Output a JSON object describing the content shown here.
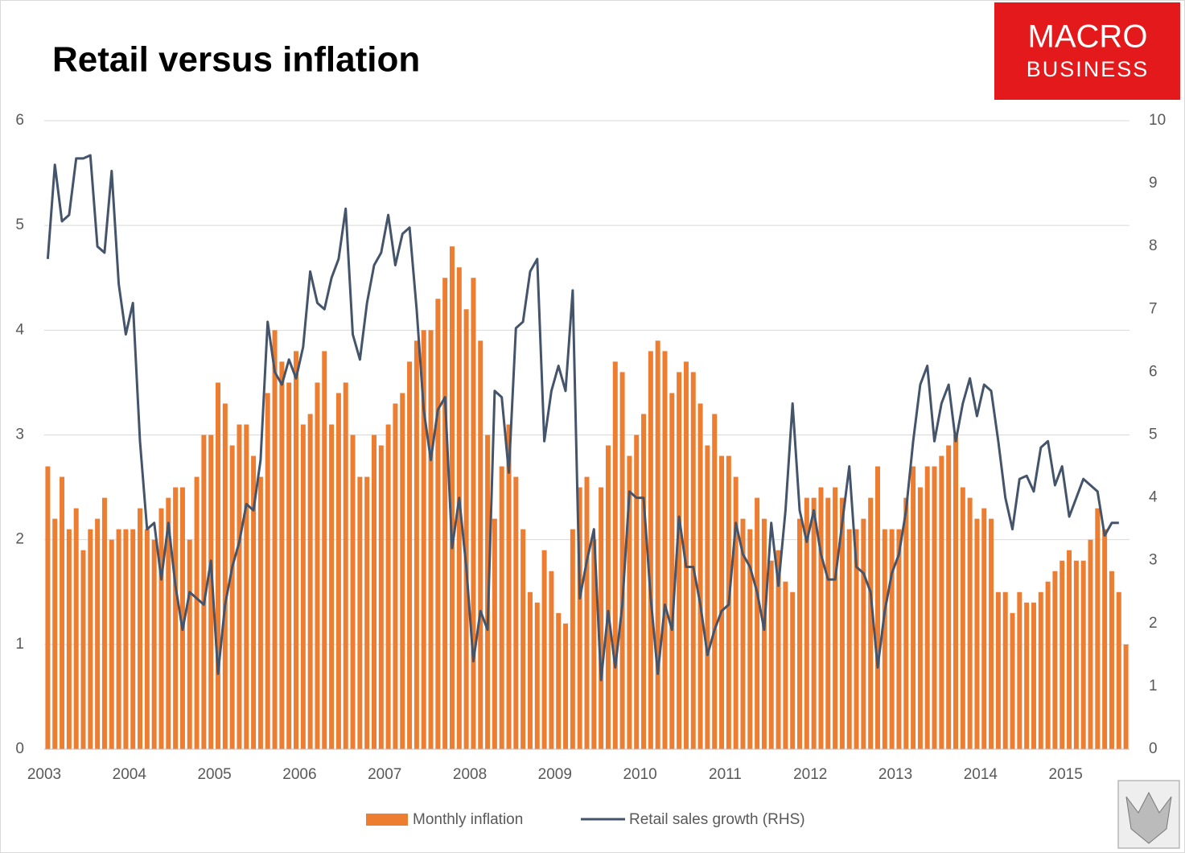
{
  "chart_data": {
    "type": "bar-line",
    "title": "Retail versus inflation",
    "logo": [
      "MACRO",
      "BUSINESS"
    ],
    "categories": [
      "2003",
      null,
      null,
      null,
      null,
      null,
      null,
      null,
      null,
      null,
      null,
      null,
      "2004",
      null,
      null,
      null,
      null,
      null,
      null,
      null,
      null,
      null,
      null,
      null,
      "2005",
      null,
      null,
      null,
      null,
      null,
      null,
      null,
      null,
      null,
      null,
      null,
      "2006",
      null,
      null,
      null,
      null,
      null,
      null,
      null,
      null,
      null,
      null,
      null,
      "2007",
      null,
      null,
      null,
      null,
      null,
      null,
      null,
      null,
      null,
      null,
      null,
      "2008",
      null,
      null,
      null,
      null,
      null,
      null,
      null,
      null,
      null,
      null,
      null,
      "2009",
      null,
      null,
      null,
      null,
      null,
      null,
      null,
      null,
      null,
      null,
      null,
      "2010",
      null,
      null,
      null,
      null,
      null,
      null,
      null,
      null,
      null,
      null,
      null,
      "2011",
      null,
      null,
      null,
      null,
      null,
      null,
      null,
      null,
      null,
      null,
      null,
      "2012",
      null,
      null,
      null,
      null,
      null,
      null,
      null,
      null,
      null,
      null,
      null,
      "2013",
      null,
      null,
      null,
      null,
      null,
      null,
      null,
      null,
      null,
      null,
      null,
      "2014",
      null,
      null,
      null,
      null,
      null,
      null,
      null,
      null,
      null,
      null,
      null,
      "2015",
      null,
      null,
      null,
      null,
      null,
      null,
      null,
      null
    ],
    "series": [
      {
        "name": "Monthly inflation",
        "type": "bar",
        "color": "#ED7D31",
        "values": [
          2.7,
          2.2,
          2.6,
          2.1,
          2.3,
          1.9,
          2.1,
          2.2,
          2.4,
          2.0,
          2.1,
          2.1,
          2.1,
          2.3,
          2.1,
          2.0,
          2.3,
          2.4,
          2.5,
          2.5,
          2.0,
          2.6,
          3.0,
          3.0,
          3.5,
          3.3,
          2.9,
          3.1,
          3.1,
          2.8,
          2.6,
          3.4,
          4.0,
          3.7,
          3.5,
          3.8,
          3.1,
          3.2,
          3.5,
          3.8,
          3.1,
          3.4,
          3.5,
          3.0,
          2.6,
          2.6,
          3.0,
          2.9,
          3.1,
          3.3,
          3.4,
          3.7,
          3.9,
          4.0,
          4.0,
          4.3,
          4.5,
          4.8,
          4.6,
          4.2,
          4.5,
          3.9,
          3.0,
          2.2,
          2.7,
          3.1,
          2.6,
          2.1,
          1.5,
          1.4,
          1.9,
          1.7,
          1.3,
          1.2,
          2.1,
          2.5,
          2.6,
          2.0,
          2.5,
          2.9,
          3.7,
          3.6,
          2.8,
          3.0,
          3.2,
          3.8,
          3.9,
          3.8,
          3.4,
          3.6,
          3.7,
          3.6,
          3.3,
          2.9,
          3.2,
          2.8,
          2.8,
          2.6,
          2.2,
          2.1,
          2.4,
          2.2,
          1.8,
          1.9,
          1.6,
          1.5,
          2.2,
          2.4,
          2.4,
          2.5,
          2.4,
          2.5,
          2.4,
          2.1,
          2.1,
          2.2,
          2.4,
          2.7,
          2.1,
          2.1,
          2.1,
          2.4,
          2.7,
          2.5,
          2.7,
          2.7,
          2.8,
          2.9,
          3.0,
          2.5,
          2.4,
          2.2,
          2.3,
          2.2,
          1.5,
          1.5,
          1.3,
          1.5,
          1.4,
          1.4,
          1.5,
          1.6,
          1.7,
          1.8,
          1.9,
          1.8,
          1.8,
          2.0,
          2.3,
          2.1,
          1.7,
          1.5,
          1.0
        ]
      },
      {
        "name": "Retail sales growth (RHS)",
        "type": "line",
        "axis": "y2",
        "color": "#44546A",
        "values": [
          7.8,
          9.3,
          8.4,
          8.5,
          9.4,
          9.4,
          9.45,
          8.0,
          7.9,
          9.2,
          7.4,
          6.6,
          7.1,
          4.9,
          3.5,
          3.6,
          2.7,
          3.6,
          2.6,
          1.9,
          2.5,
          2.4,
          2.3,
          3.0,
          1.2,
          2.3,
          2.9,
          3.3,
          3.9,
          3.8,
          4.6,
          6.8,
          6.0,
          5.8,
          6.2,
          5.9,
          6.4,
          7.6,
          7.1,
          7.0,
          7.5,
          7.8,
          8.6,
          6.6,
          6.2,
          7.1,
          7.7,
          7.9,
          8.5,
          7.7,
          8.2,
          8.3,
          7.0,
          5.4,
          4.6,
          5.4,
          5.6,
          3.2,
          4.0,
          2.9,
          1.4,
          2.2,
          1.9,
          5.7,
          5.6,
          4.4,
          6.7,
          6.8,
          7.6,
          7.8,
          4.9,
          5.7,
          6.1,
          5.7,
          7.3,
          2.4,
          3.0,
          3.5,
          1.1,
          2.2,
          1.3,
          2.3,
          4.1,
          4.0,
          4.0,
          2.4,
          1.2,
          2.3,
          1.9,
          3.7,
          2.9,
          2.9,
          2.3,
          1.5,
          1.9,
          2.2,
          2.3,
          3.6,
          3.1,
          2.9,
          2.5,
          1.9,
          3.6,
          2.6,
          3.8,
          5.5,
          3.8,
          3.3,
          3.8,
          3.1,
          2.7,
          2.7,
          3.6,
          4.5,
          2.9,
          2.8,
          2.5,
          1.3,
          2.2,
          2.8,
          3.1,
          3.8,
          4.9,
          5.8,
          6.1,
          4.9,
          5.5,
          5.8,
          4.9,
          5.5,
          5.9,
          5.3,
          5.8,
          5.7,
          4.9,
          4.0,
          3.5,
          4.3,
          4.35,
          4.1,
          4.8,
          4.9,
          4.2,
          4.5,
          3.7,
          4.0,
          4.3,
          4.2,
          4.1,
          3.4,
          3.6,
          3.6,
          null
        ]
      }
    ],
    "ylim": [
      0,
      6
    ],
    "yticks": [
      0,
      1,
      2,
      3,
      4,
      5,
      6
    ],
    "y2lim": [
      0,
      10
    ],
    "y2ticks": [
      0,
      1,
      2,
      3,
      4,
      5,
      6,
      7,
      8,
      9,
      10
    ],
    "grid": true,
    "legend": "bottom"
  }
}
